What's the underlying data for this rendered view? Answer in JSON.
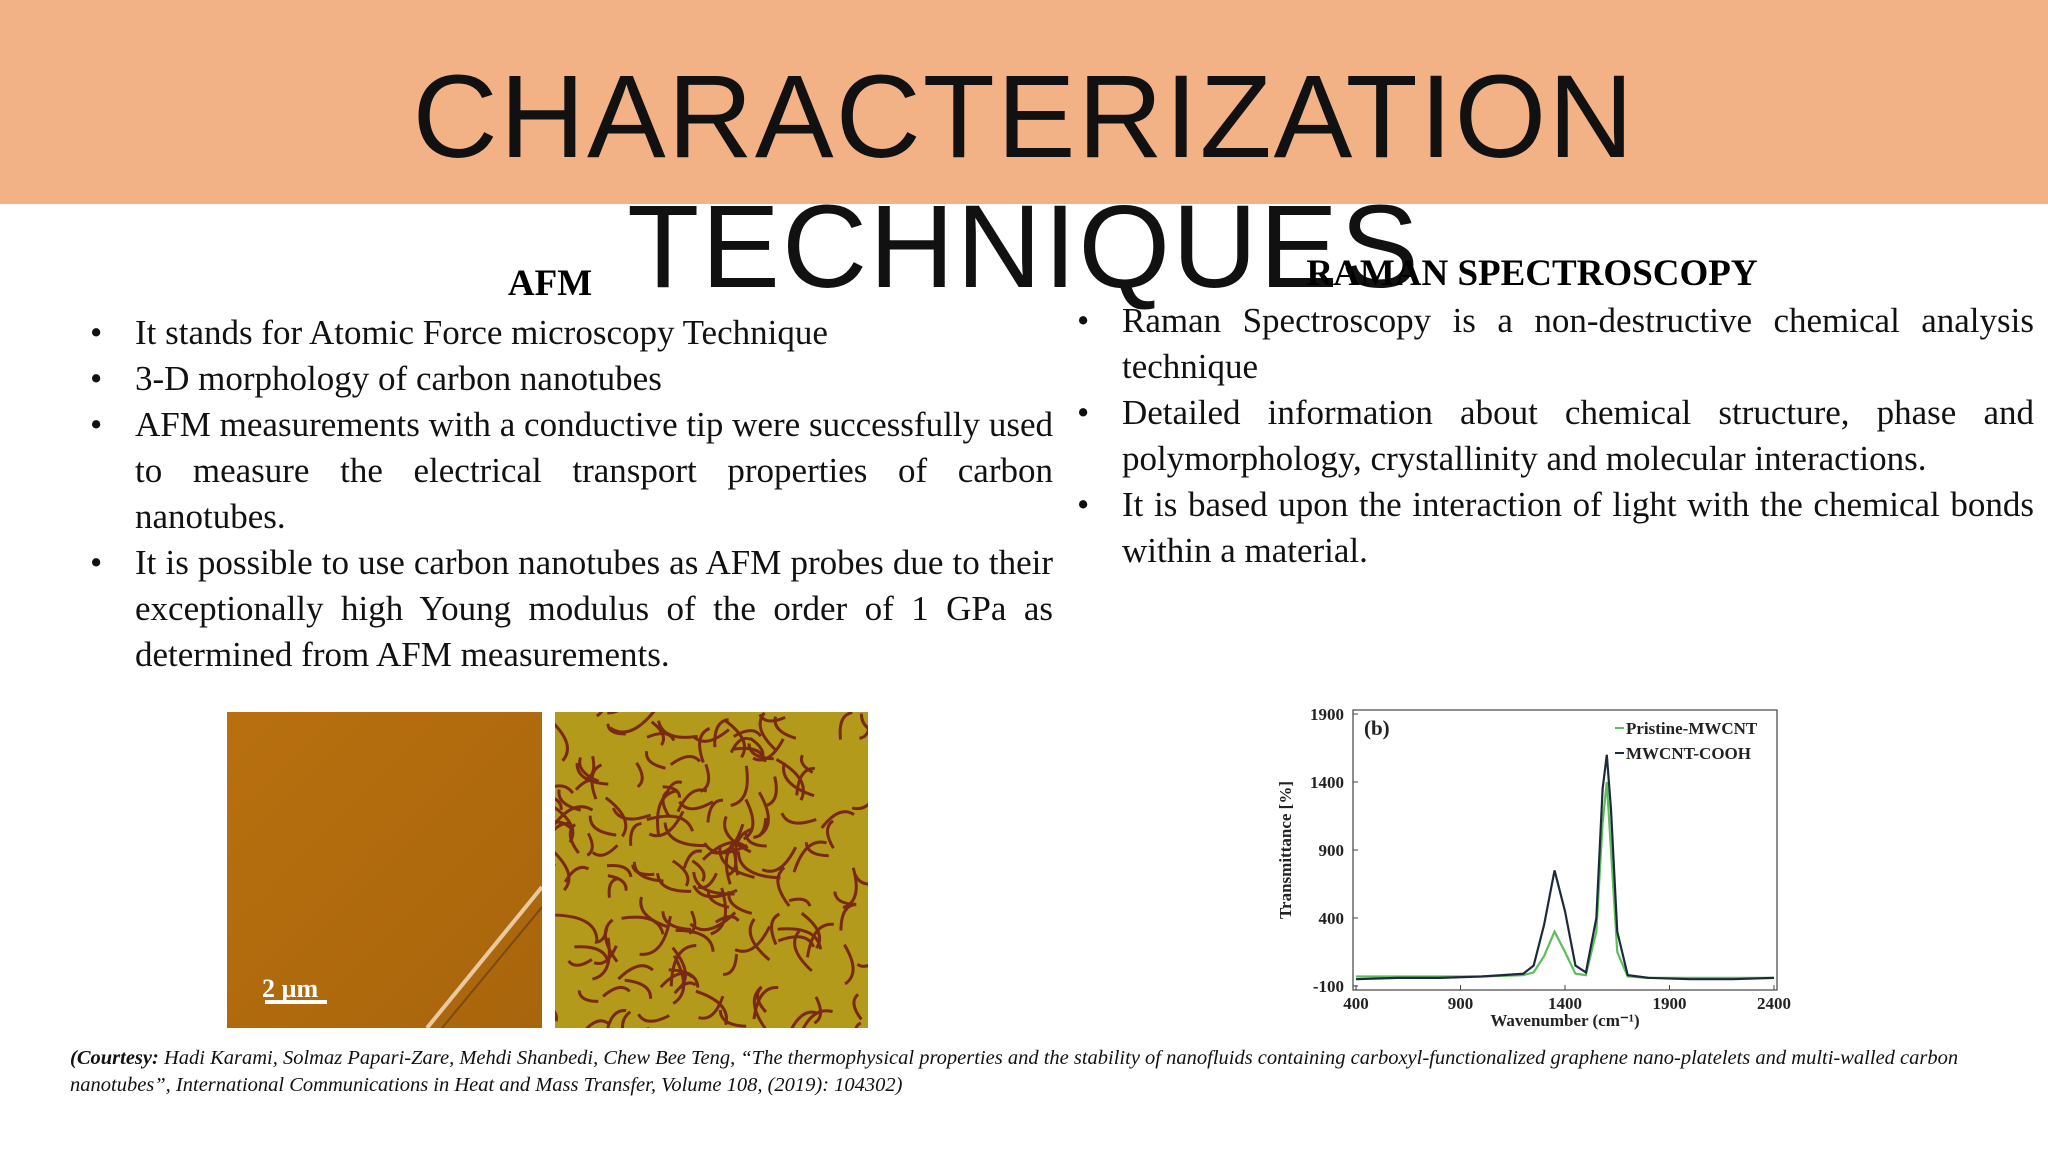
{
  "header": {
    "title": "CHARACTERIZATION TECHNIQUES"
  },
  "afm": {
    "heading": "AFM",
    "bullets": [
      "It stands for Atomic Force microscopy Technique",
      "3-D morphology of carbon nanotubes",
      "AFM measurements with a conductive tip were successfully used to measure the electrical transport properties of carbon nanotubes.",
      "It is possible to use carbon nanotubes as AFM probes due to their exceptionally high Young modulus of the order of 1 GPa as determined from AFM measurements."
    ],
    "scale_label": "2 µm"
  },
  "raman": {
    "heading": "RAMAN SPECTROSCOPY",
    "bullets": [
      "Raman Spectroscopy is a non-destructive chemical analysis technique",
      "Detailed information about chemical structure, phase and polymorphology, crystallinity and molecular interactions.",
      "It is based upon the interaction of light with the chemical bonds within a material."
    ]
  },
  "chart_data": {
    "type": "line",
    "panel_label": "(b)",
    "x_label": "Wavenumber (cm⁻¹)",
    "y_label": "Transmittance [%]",
    "x": [
      400,
      600,
      800,
      1000,
      1200,
      1250,
      1300,
      1350,
      1400,
      1450,
      1500,
      1550,
      1580,
      1600,
      1620,
      1650,
      1700,
      1800,
      2000,
      2200,
      2400
    ],
    "series": [
      {
        "name": "Pristine-MWCNT",
        "color": "#5cbf5c",
        "values": [
          -30,
          -30,
          -30,
          -30,
          -20,
          0,
          120,
          300,
          150,
          -10,
          -20,
          300,
          1100,
          1400,
          900,
          150,
          -30,
          -40,
          -40,
          -40,
          -40
        ]
      },
      {
        "name": "MWCNT-COOH",
        "color": "#1c2a3a",
        "values": [
          -50,
          -40,
          -40,
          -30,
          -10,
          50,
          350,
          750,
          450,
          50,
          0,
          400,
          1350,
          1600,
          1200,
          300,
          -20,
          -40,
          -50,
          -50,
          -40
        ]
      }
    ],
    "xlim": [
      400,
      2400
    ],
    "xticks": [
      400,
      900,
      1400,
      1900,
      2400
    ],
    "ylim": [
      -100,
      1900
    ],
    "yticks": [
      -100,
      400,
      900,
      1400,
      1900
    ]
  },
  "citation": {
    "lead": "(Courtesy:",
    "text": " Hadi Karami, Solmaz Papari-Zare, Mehdi Shanbedi, Chew Bee Teng, “The thermophysical properties and the stability of nanofluids containing carboxyl-functionalized graphene nano-platelets and multi-walled carbon nanotubes”, International Communications in Heat and Mass Transfer, Volume 108, (2019): 104302)"
  }
}
